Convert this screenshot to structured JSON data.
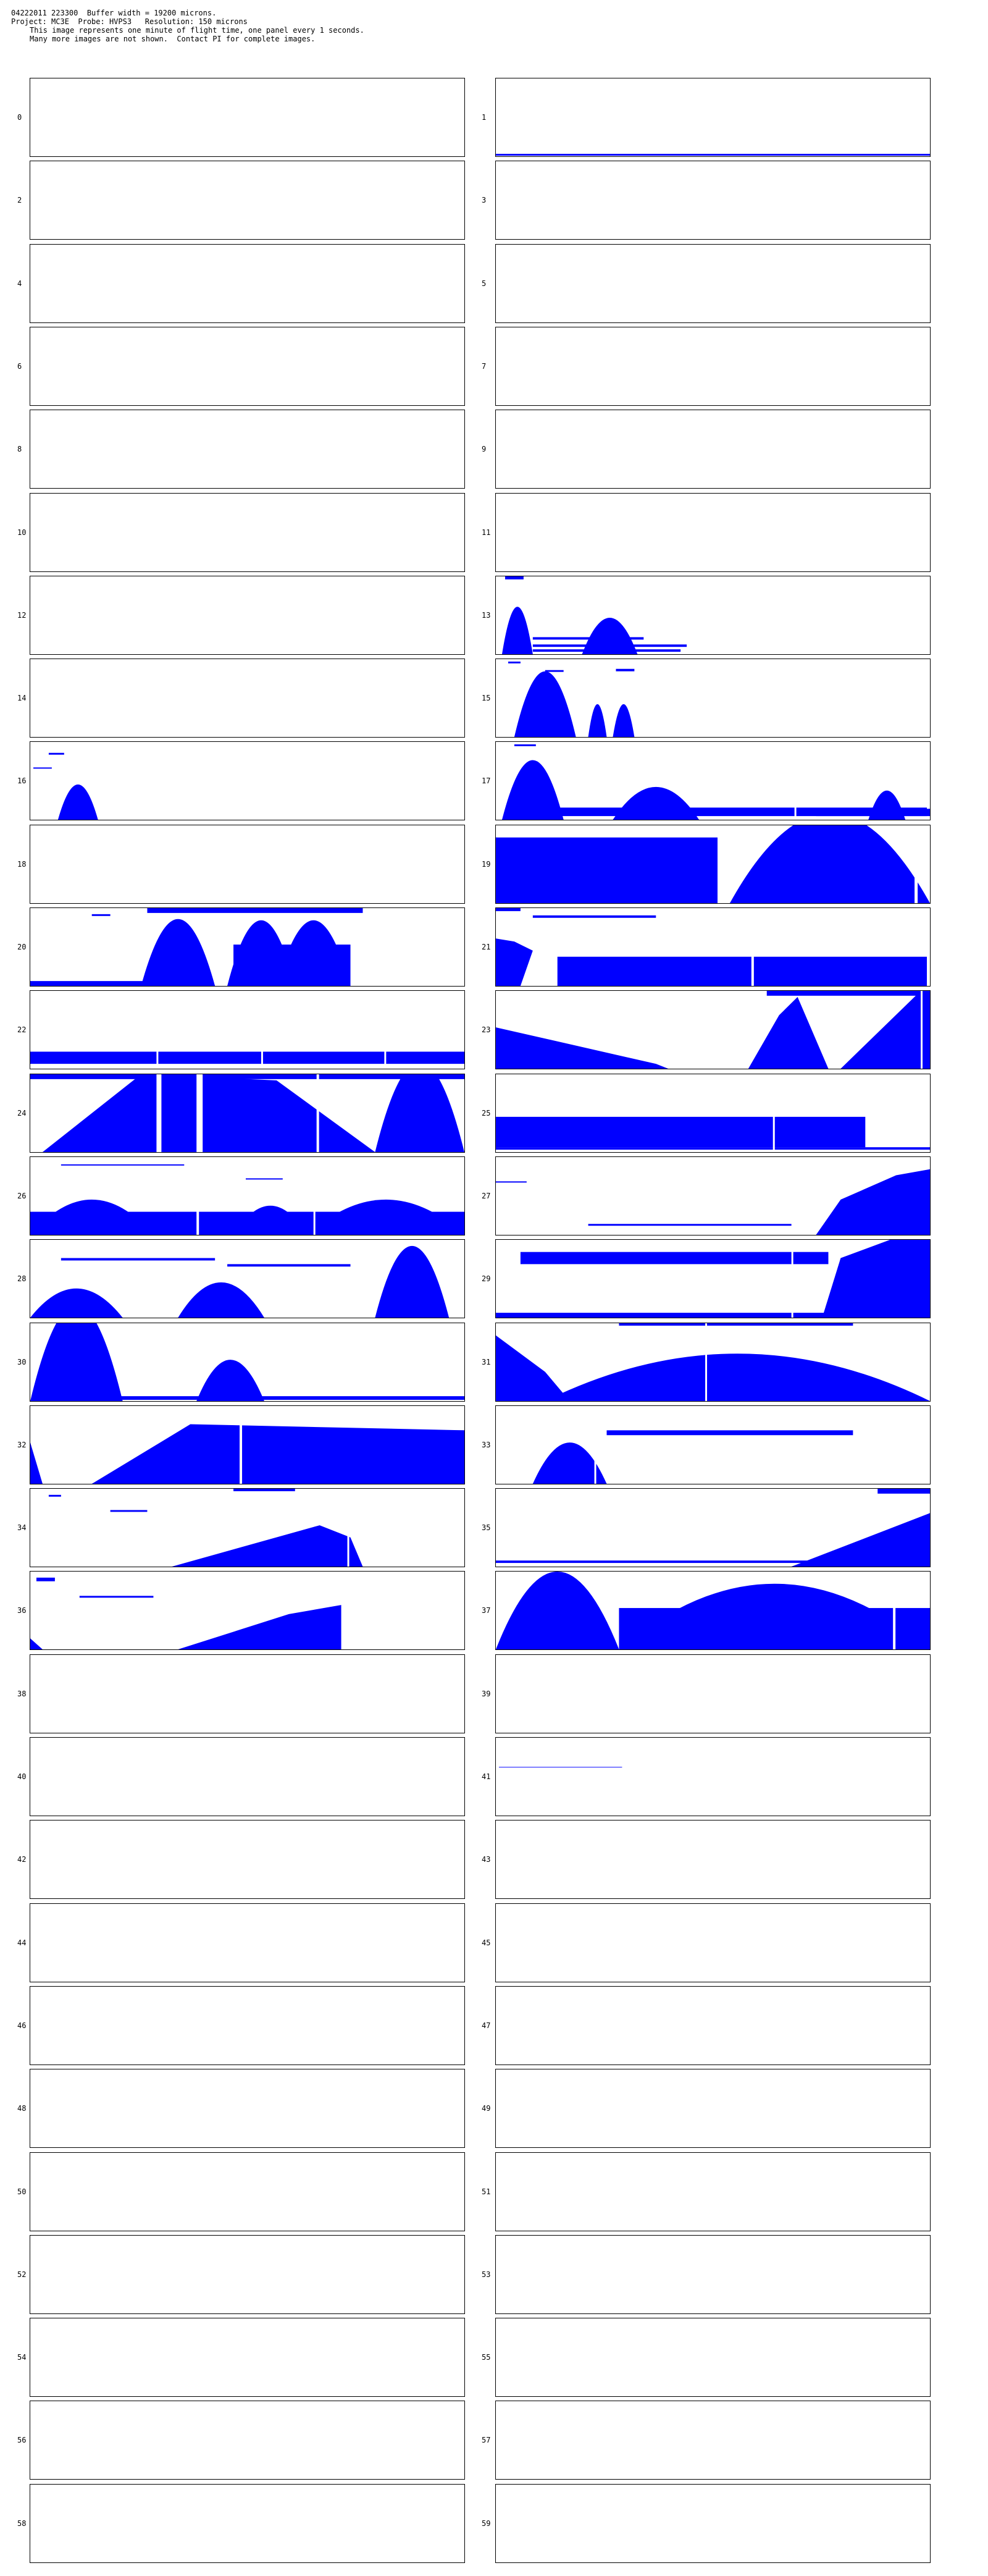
{
  "header": {
    "line1": "04222011 223300  Buffer width = 19200 microns.",
    "line2": "Project: MC3E  Probe: HVPS3   Resolution: 150 microns",
    "line3": "This image represents one minute of flight time, one panel every 1 seconds.",
    "line4": "Many more images are not shown.  Contact PI for complete images."
  },
  "colors": {
    "particle": "#0000ff",
    "border": "#000000",
    "background": "#ffffff"
  },
  "panel_labels": [
    "0",
    "1",
    "2",
    "3",
    "4",
    "5",
    "6",
    "7",
    "8",
    "9",
    "10",
    "11",
    "12",
    "13",
    "14",
    "15",
    "16",
    "17",
    "18",
    "19",
    "20",
    "21",
    "22",
    "23",
    "24",
    "25",
    "26",
    "27",
    "28",
    "29",
    "30",
    "31",
    "32",
    "33",
    "34",
    "35",
    "36",
    "37",
    "38",
    "39",
    "40",
    "41",
    "42",
    "43",
    "44",
    "45",
    "46",
    "47",
    "48",
    "49",
    "50",
    "51",
    "52",
    "53",
    "54",
    "55",
    "56",
    "57",
    "58",
    "59"
  ]
}
